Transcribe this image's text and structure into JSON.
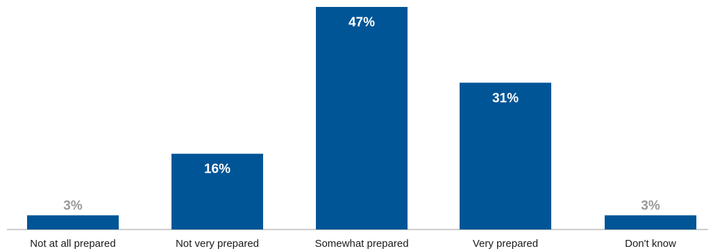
{
  "chart_data": {
    "type": "bar",
    "title": "",
    "xlabel": "",
    "ylabel": "",
    "categories": [
      "Not at all prepared",
      "Not very prepared",
      "Somewhat prepared",
      "Very prepared",
      "Don't know"
    ],
    "values": [
      3,
      16,
      47,
      31,
      3
    ],
    "value_labels": [
      "3%",
      "16%",
      "47%",
      "31%",
      "3%"
    ],
    "ylim": [
      0,
      47
    ],
    "grid": false,
    "legend": "none",
    "colors": {
      "bar": "#005596",
      "label_inside": "#ffffff",
      "label_outside": "#999999",
      "axis": "#999999",
      "category_text": "#1a1a1a"
    }
  }
}
